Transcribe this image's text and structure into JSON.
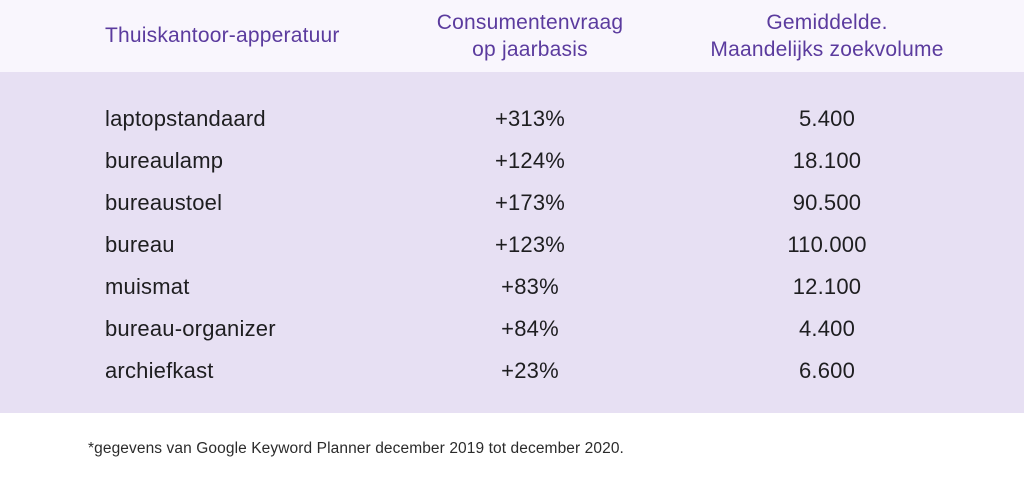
{
  "header": {
    "col1": "Thuiskantoor-apperatuur",
    "col2": "Consumentenvraag\nop jaarbasis",
    "col3": "Gemiddelde.\nMaandelijks zoekvolume"
  },
  "chart_data": {
    "type": "table",
    "title": "Thuiskantoor-apperatuur consumentenvraag en zoekvolume",
    "columns": [
      "Thuiskantoor-apperatuur",
      "Consumentenvraag op jaarbasis",
      "Gemiddelde. Maandelijks zoekvolume"
    ],
    "rows": [
      [
        "laptopstandaard",
        "+313%",
        "5.400"
      ],
      [
        "bureaulamp",
        "+124%",
        "18.100"
      ],
      [
        "bureaustoel",
        "+173%",
        "90.500"
      ],
      [
        "bureau",
        "+123%",
        "110.000"
      ],
      [
        "muismat",
        "+83%",
        "12.100"
      ],
      [
        "bureau-organizer",
        "+84%",
        "4.400"
      ],
      [
        "archiefkast",
        "+23%",
        "6.600"
      ]
    ],
    "numeric": {
      "demand_change_pct": [
        313,
        124,
        173,
        123,
        83,
        84,
        23
      ],
      "monthly_search_volume": [
        5400,
        18100,
        90500,
        110000,
        12100,
        4400,
        6600
      ]
    }
  },
  "footnote": "*gegevens van Google Keyword Planner december 2019 tot december 2020.",
  "colors": {
    "header_bg": "#f9f6fd",
    "body_bg": "#e7e0f3",
    "header_text": "#5b3b9e",
    "body_text": "#1e1e20",
    "footer_bg": "#ffffff",
    "footer_text": "#2b2b2b"
  }
}
